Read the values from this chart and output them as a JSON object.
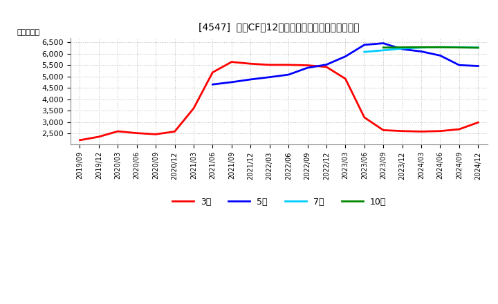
{
  "title": "[4547]  営業CFだ12か月移動合計の標準偏差の推移",
  "ylabel": "（百万円）",
  "ylim": [
    2000,
    6700
  ],
  "yticks": [
    2500,
    3000,
    3500,
    4000,
    4500,
    5000,
    5500,
    6000,
    6500
  ],
  "background_color": "#ffffff",
  "grid_color": "#aaaaaa",
  "series": {
    "3年": {
      "color": "#ff0000",
      "x": [
        "2019/09",
        "2019/12",
        "2020/03",
        "2020/06",
        "2020/09",
        "2020/12",
        "2021/03",
        "2021/06",
        "2021/09",
        "2021/12",
        "2022/03",
        "2022/06",
        "2022/09",
        "2022/12",
        "2023/03",
        "2023/06",
        "2023/09",
        "2023/12",
        "2024/03",
        "2024/06",
        "2024/09",
        "2024/12"
      ],
      "y": [
        2200,
        2350,
        2590,
        2510,
        2460,
        2580,
        3600,
        5180,
        5640,
        5560,
        5510,
        5510,
        5490,
        5420,
        4900,
        3200,
        2640,
        2600,
        2580,
        2600,
        2680,
        2980
      ]
    },
    "5年": {
      "color": "#0000ff",
      "x": [
        "2021/06",
        "2021/09",
        "2021/12",
        "2022/03",
        "2022/06",
        "2022/09",
        "2022/12",
        "2023/03",
        "2023/06",
        "2023/09",
        "2023/12",
        "2024/03",
        "2024/06",
        "2024/09",
        "2024/12"
      ],
      "y": [
        4650,
        4750,
        4870,
        4970,
        5080,
        5380,
        5520,
        5880,
        6390,
        6460,
        6200,
        6100,
        5920,
        5500,
        5460
      ]
    },
    "7年": {
      "color": "#00ccff",
      "x": [
        "2023/06",
        "2023/09",
        "2023/12",
        "2024/03",
        "2024/06",
        "2024/09",
        "2024/12"
      ],
      "y": [
        6080,
        6150,
        6230,
        6270,
        6290,
        6280,
        6270
      ]
    },
    "10年": {
      "color": "#008800",
      "x": [
        "2023/09",
        "2023/12",
        "2024/03",
        "2024/06",
        "2024/09",
        "2024/12"
      ],
      "y": [
        6270,
        6280,
        6285,
        6285,
        6275,
        6265
      ]
    }
  },
  "xtick_labels": [
    "2019/09",
    "2019/12",
    "2020/03",
    "2020/06",
    "2020/09",
    "2020/12",
    "2021/03",
    "2021/06",
    "2021/09",
    "2021/12",
    "2022/03",
    "2022/06",
    "2022/09",
    "2022/12",
    "2023/03",
    "2023/06",
    "2023/09",
    "2023/12",
    "2024/03",
    "2024/06",
    "2024/09",
    "2024/12"
  ],
  "legend": [
    {
      "label": "3年",
      "color": "#ff0000"
    },
    {
      "label": "5年",
      "color": "#0000ff"
    },
    {
      "label": "7年",
      "color": "#00ccff"
    },
    {
      "label": "10年",
      "color": "#008800"
    }
  ]
}
